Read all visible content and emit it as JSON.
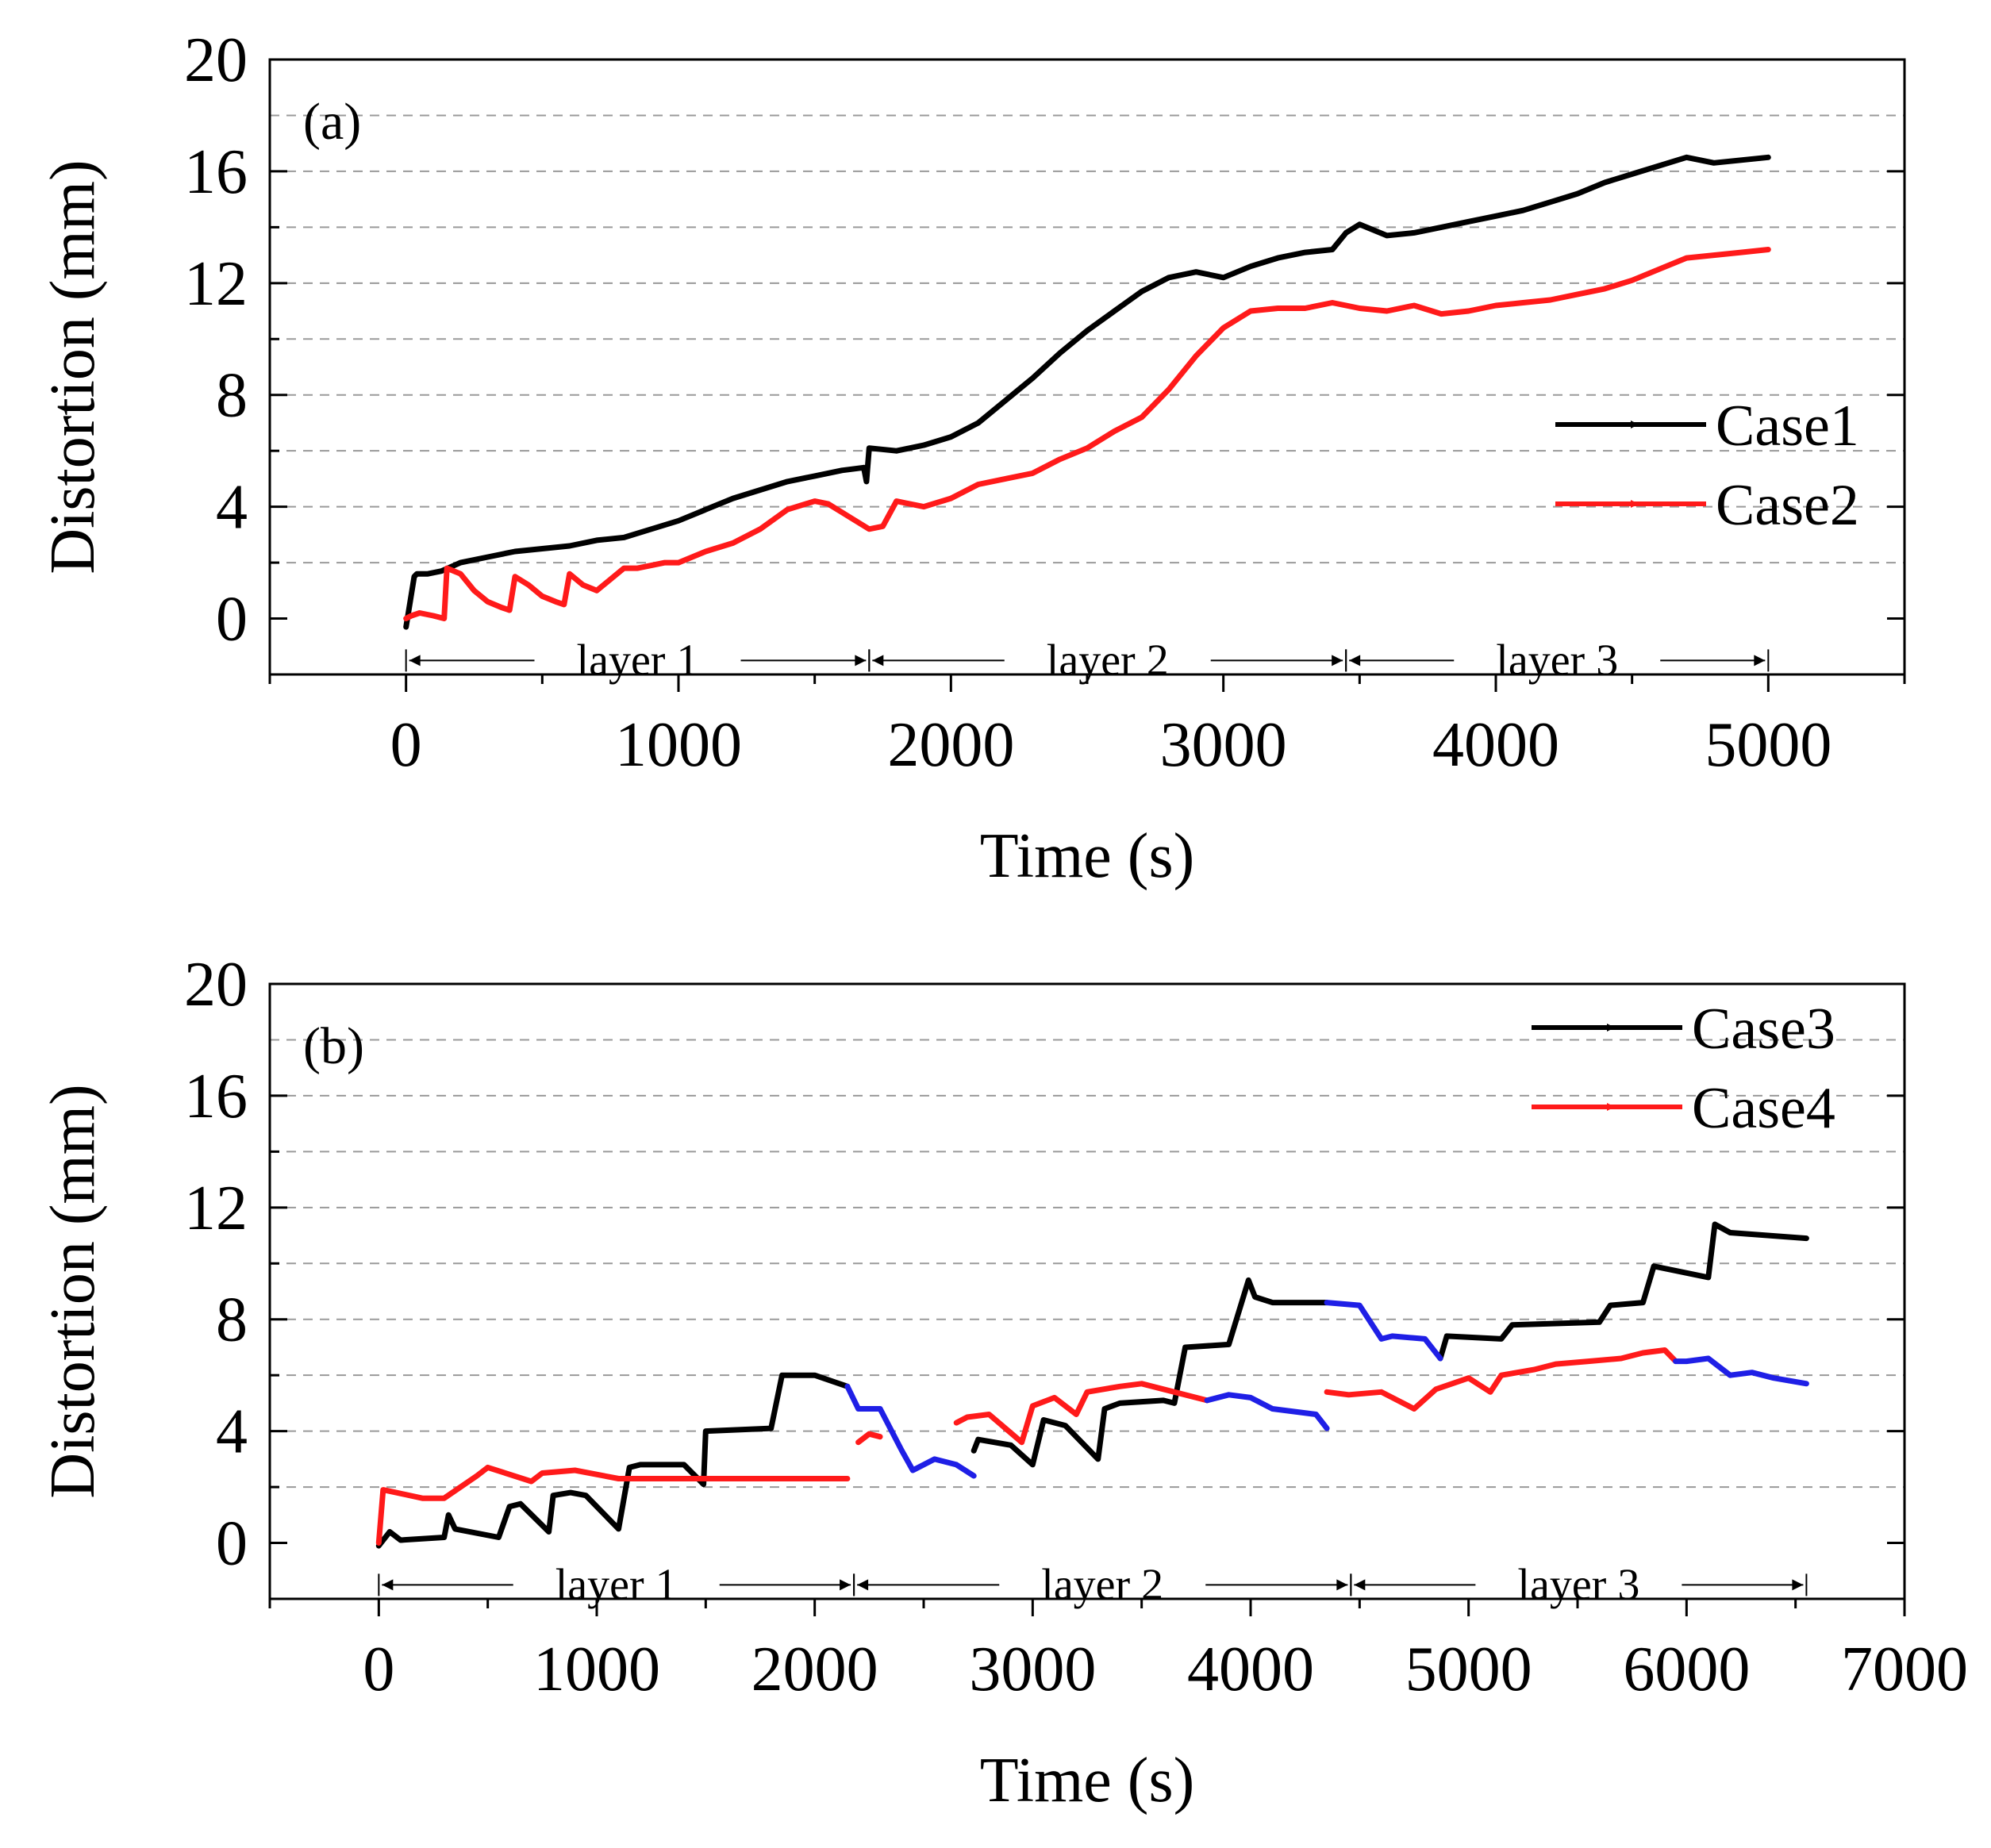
{
  "colors": {
    "black": "#000000",
    "red": "#ff1a1a",
    "blue": "#1f1fe6"
  },
  "chart_data": [
    {
      "id": "a",
      "type": "line",
      "panel_label": "(a)",
      "xlabel": "Time (s)",
      "ylabel": "Distortion (mm)",
      "xlim": [
        -500,
        5500
      ],
      "ylim": [
        -2,
        20
      ],
      "xticks": [
        0,
        1000,
        2000,
        3000,
        4000,
        5000
      ],
      "yticks": [
        0,
        4,
        8,
        12,
        16,
        20
      ],
      "grid": true,
      "legend_position": "right",
      "layers": [
        {
          "label": "layer 1",
          "start": 0,
          "end": 1700
        },
        {
          "label": "layer 2",
          "start": 1700,
          "end": 3450
        },
        {
          "label": "layer 3",
          "start": 3450,
          "end": 5000
        }
      ],
      "series": [
        {
          "name": "Case1",
          "color": "#000000",
          "x": [
            0,
            30,
            40,
            80,
            130,
            200,
            300,
            400,
            500,
            600,
            700,
            800,
            900,
            1000,
            1100,
            1200,
            1300,
            1400,
            1500,
            1600,
            1680,
            1690,
            1700,
            1800,
            1900,
            2000,
            2100,
            2200,
            2300,
            2400,
            2500,
            2600,
            2700,
            2800,
            2900,
            3000,
            3100,
            3200,
            3300,
            3400,
            3450,
            3500,
            3600,
            3700,
            3800,
            3900,
            4000,
            4100,
            4200,
            4300,
            4400,
            4500,
            4600,
            4700,
            4800,
            4900,
            5000
          ],
          "y": [
            -0.3,
            1.5,
            1.6,
            1.6,
            1.7,
            2.0,
            2.2,
            2.4,
            2.5,
            2.6,
            2.8,
            2.9,
            3.2,
            3.5,
            3.9,
            4.3,
            4.6,
            4.9,
            5.1,
            5.3,
            5.4,
            4.9,
            6.1,
            6.0,
            6.2,
            6.5,
            7.0,
            7.8,
            8.6,
            9.5,
            10.3,
            11.0,
            11.7,
            12.2,
            12.4,
            12.2,
            12.6,
            12.9,
            13.1,
            13.2,
            13.8,
            14.1,
            13.7,
            13.8,
            14.0,
            14.2,
            14.4,
            14.6,
            14.9,
            15.2,
            15.6,
            15.9,
            16.2,
            16.5,
            16.3,
            16.4,
            16.5
          ]
        },
        {
          "name": "Case2",
          "color": "#ff1a1a",
          "x": [
            0,
            20,
            50,
            100,
            140,
            150,
            200,
            250,
            300,
            350,
            380,
            400,
            450,
            500,
            550,
            580,
            600,
            650,
            700,
            750,
            800,
            850,
            900,
            950,
            1000,
            1100,
            1200,
            1300,
            1400,
            1500,
            1550,
            1600,
            1650,
            1700,
            1750,
            1800,
            1900,
            2000,
            2100,
            2200,
            2300,
            2400,
            2500,
            2600,
            2700,
            2800,
            2900,
            3000,
            3100,
            3200,
            3300,
            3400,
            3500,
            3600,
            3700,
            3800,
            3900,
            4000,
            4100,
            4200,
            4300,
            4400,
            4500,
            4600,
            4700,
            4800,
            4900,
            5000
          ],
          "y": [
            0.0,
            0.1,
            0.2,
            0.1,
            0.0,
            1.8,
            1.6,
            1.0,
            0.6,
            0.4,
            0.3,
            1.5,
            1.2,
            0.8,
            0.6,
            0.5,
            1.6,
            1.2,
            1.0,
            1.4,
            1.8,
            1.8,
            1.9,
            2.0,
            2.0,
            2.4,
            2.7,
            3.2,
            3.9,
            4.2,
            4.1,
            3.8,
            3.5,
            3.2,
            3.3,
            4.2,
            4.0,
            4.3,
            4.8,
            5.0,
            5.2,
            5.7,
            6.1,
            6.7,
            7.2,
            8.2,
            9.4,
            10.4,
            11.0,
            11.1,
            11.1,
            11.3,
            11.1,
            11.0,
            11.2,
            10.9,
            11.0,
            11.2,
            11.3,
            11.4,
            11.6,
            11.8,
            12.1,
            12.5,
            12.9,
            13.0,
            13.1,
            13.2
          ]
        }
      ]
    },
    {
      "id": "b",
      "type": "line",
      "panel_label": "(b)",
      "xlabel": "Time (s)",
      "ylabel": "Distortion (mm)",
      "xlim": [
        -500,
        7000
      ],
      "ylim": [
        -2,
        20
      ],
      "xticks": [
        0,
        1000,
        2000,
        3000,
        4000,
        5000,
        6000,
        7000
      ],
      "yticks": [
        0,
        4,
        8,
        12,
        16,
        20
      ],
      "grid": true,
      "legend_position": "top-right",
      "layers": [
        {
          "label": "layer 1",
          "start": 0,
          "end": 2180
        },
        {
          "label": "layer 2",
          "start": 2180,
          "end": 4460
        },
        {
          "label": "layer 3",
          "start": 4460,
          "end": 6550
        }
      ],
      "series": [
        {
          "name": "Case3",
          "color": "#000000",
          "x": [
            0,
            50,
            100,
            300,
            320,
            350,
            550,
            600,
            650,
            780,
            800,
            880,
            950,
            1100,
            1150,
            1200,
            1400,
            1490,
            1500,
            1800,
            1850,
            2000,
            2150
          ],
          "y": [
            -0.1,
            0.4,
            0.1,
            0.2,
            1.0,
            0.5,
            0.2,
            1.3,
            1.4,
            0.4,
            1.7,
            1.8,
            1.7,
            0.5,
            2.7,
            2.8,
            2.8,
            2.1,
            4.0,
            4.1,
            6.0,
            6.0,
            5.6
          ],
          "segments": [
            {
              "color": "#000000",
              "x": [
                2730,
                2750,
                2900,
                3000,
                3050,
                3150,
                3300,
                3330,
                3400,
                3600,
                3650,
                3700,
                3900,
                3990,
                4020,
                4100,
                4350
              ],
              "y": [
                3.3,
                3.7,
                3.5,
                2.8,
                4.4,
                4.2,
                3.0,
                4.8,
                5.0,
                5.1,
                5.0,
                7.0,
                7.1,
                9.4,
                8.8,
                8.6,
                8.6
              ]
            },
            {
              "color": "#000000",
              "x": [
                4870,
                4900,
                5150,
                5200,
                5600,
                5650,
                5800,
                5850,
                6100,
                6130,
                6200,
                6550
              ],
              "y": [
                6.6,
                7.4,
                7.3,
                7.8,
                7.9,
                8.5,
                8.6,
                9.9,
                9.5,
                11.4,
                11.1,
                10.9
              ]
            }
          ]
        },
        {
          "name": "Case4",
          "color": "#ff1a1a",
          "x": [
            0,
            20,
            80,
            200,
            300,
            450,
            500,
            700,
            750,
            900,
            1100,
            1300,
            1500,
            1800,
            2000,
            2150
          ],
          "y": [
            0.0,
            1.9,
            1.8,
            1.6,
            1.6,
            2.4,
            2.7,
            2.2,
            2.5,
            2.6,
            2.3,
            2.3,
            2.3,
            2.3,
            2.3,
            2.3
          ],
          "segments": [
            {
              "color": "#ff1a1a",
              "x": [
                2200,
                2250,
                2300
              ],
              "y": [
                3.6,
                3.9,
                3.8
              ]
            },
            {
              "color": "#ff1a1a",
              "x": [
                2650,
                2700,
                2800,
                2950,
                3000,
                3100,
                3200,
                3250,
                3400,
                3500,
                3600,
                3800
              ],
              "y": [
                4.3,
                4.5,
                4.6,
                3.6,
                4.9,
                5.2,
                4.6,
                5.4,
                5.6,
                5.7,
                5.5,
                5.1
              ]
            },
            {
              "color": "#ff1a1a",
              "x": [
                4350,
                4450,
                4600,
                4750,
                4850,
                5000,
                5100,
                5150,
                5300,
                5400,
                5550,
                5700,
                5800,
                5900,
                5950
              ],
              "y": [
                5.4,
                5.3,
                5.4,
                4.8,
                5.5,
                5.9,
                5.4,
                6.0,
                6.2,
                6.4,
                6.5,
                6.6,
                6.8,
                6.9,
                6.5
              ]
            }
          ]
        },
        {
          "name": "Case3 / Case4 (blue segments)",
          "color": "#1f1fe6",
          "in_legend": false,
          "segments": [
            {
              "x": [
                2150,
                2200,
                2300,
                2400,
                2450,
                2550,
                2650,
                2730
              ],
              "y": [
                5.6,
                4.8,
                4.8,
                3.3,
                2.6,
                3.0,
                2.8,
                2.4
              ]
            },
            {
              "x": [
                3800,
                3900,
                4000,
                4100,
                4200,
                4300,
                4350
              ],
              "y": [
                5.1,
                5.3,
                5.2,
                4.8,
                4.7,
                4.6,
                4.1
              ]
            },
            {
              "x": [
                4350,
                4500,
                4600,
                4650,
                4800,
                4870
              ],
              "y": [
                8.6,
                8.5,
                7.3,
                7.4,
                7.3,
                6.6
              ]
            },
            {
              "x": [
                5950,
                6000,
                6100,
                6200,
                6300,
                6400,
                6550
              ],
              "y": [
                6.5,
                6.5,
                6.6,
                6.0,
                6.1,
                5.9,
                5.7
              ]
            }
          ]
        }
      ]
    }
  ]
}
